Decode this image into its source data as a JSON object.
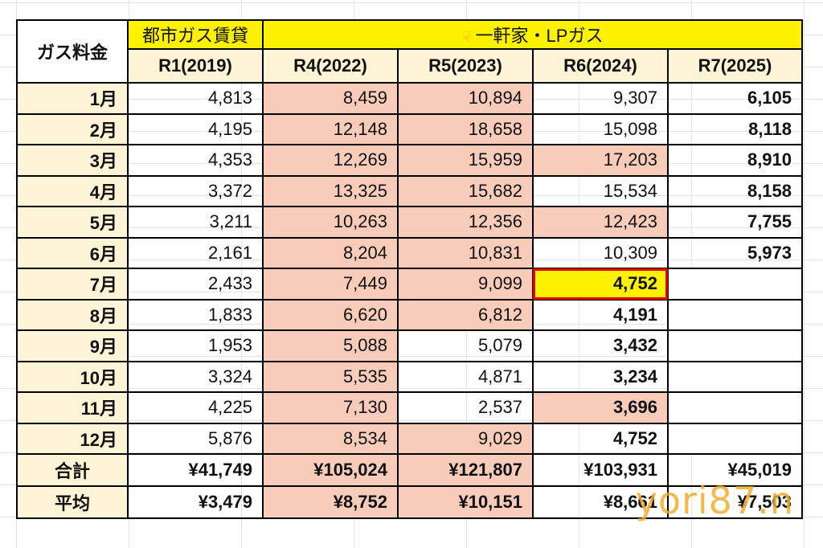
{
  "header": {
    "title": "ガス料金",
    "group_city": "都市ガス賃貸",
    "group_house_icon": "pointing-hand-icon",
    "group_house": "一軒家・LPガス",
    "years": [
      "R1(2019)",
      "R4(2022)",
      "R5(2023)",
      "R6(2024)",
      "R7(2025)"
    ]
  },
  "rows": [
    {
      "month": "1月",
      "values": [
        "4,813",
        "8,459",
        "10,894",
        "9,307",
        "6,105"
      ]
    },
    {
      "month": "2月",
      "values": [
        "4,195",
        "12,148",
        "18,658",
        "15,098",
        "8,118"
      ]
    },
    {
      "month": "3月",
      "values": [
        "4,353",
        "12,269",
        "15,959",
        "17,203",
        "8,910"
      ]
    },
    {
      "month": "4月",
      "values": [
        "3,372",
        "13,325",
        "15,682",
        "15,534",
        "8,158"
      ]
    },
    {
      "month": "5月",
      "values": [
        "3,211",
        "10,263",
        "12,356",
        "12,423",
        "7,755"
      ]
    },
    {
      "month": "6月",
      "values": [
        "2,161",
        "8,204",
        "10,831",
        "10,309",
        "5,973"
      ]
    },
    {
      "month": "7月",
      "values": [
        "2,433",
        "7,449",
        "9,099",
        "4,752",
        ""
      ]
    },
    {
      "month": "8月",
      "values": [
        "1,833",
        "6,620",
        "6,812",
        "4,191",
        ""
      ]
    },
    {
      "month": "9月",
      "values": [
        "1,953",
        "5,088",
        "5,079",
        "3,432",
        ""
      ]
    },
    {
      "month": "10月",
      "values": [
        "3,324",
        "5,535",
        "4,871",
        "3,234",
        ""
      ]
    },
    {
      "month": "11月",
      "values": [
        "4,225",
        "7,130",
        "2,537",
        "3,696",
        ""
      ]
    },
    {
      "month": "12月",
      "values": [
        "5,876",
        "8,534",
        "9,029",
        "4,752",
        ""
      ]
    }
  ],
  "total": {
    "label": "合計",
    "values": [
      "¥41,749",
      "¥105,024",
      "¥121,807",
      "¥103,931",
      "¥45,019"
    ]
  },
  "average": {
    "label": "平均",
    "values": [
      "¥3,479",
      "¥8,752",
      "¥10,151",
      "¥8,661",
      "¥7,503"
    ]
  },
  "watermark": "yori87.n",
  "colors": {
    "highlight_yellow": "#fff200",
    "label_cream": "#fff5d6",
    "pink_fill": "#f8ccb9",
    "red_text": "#c00000",
    "outline_red": "#e60000",
    "watermark_orange": "#f2ad2e"
  }
}
